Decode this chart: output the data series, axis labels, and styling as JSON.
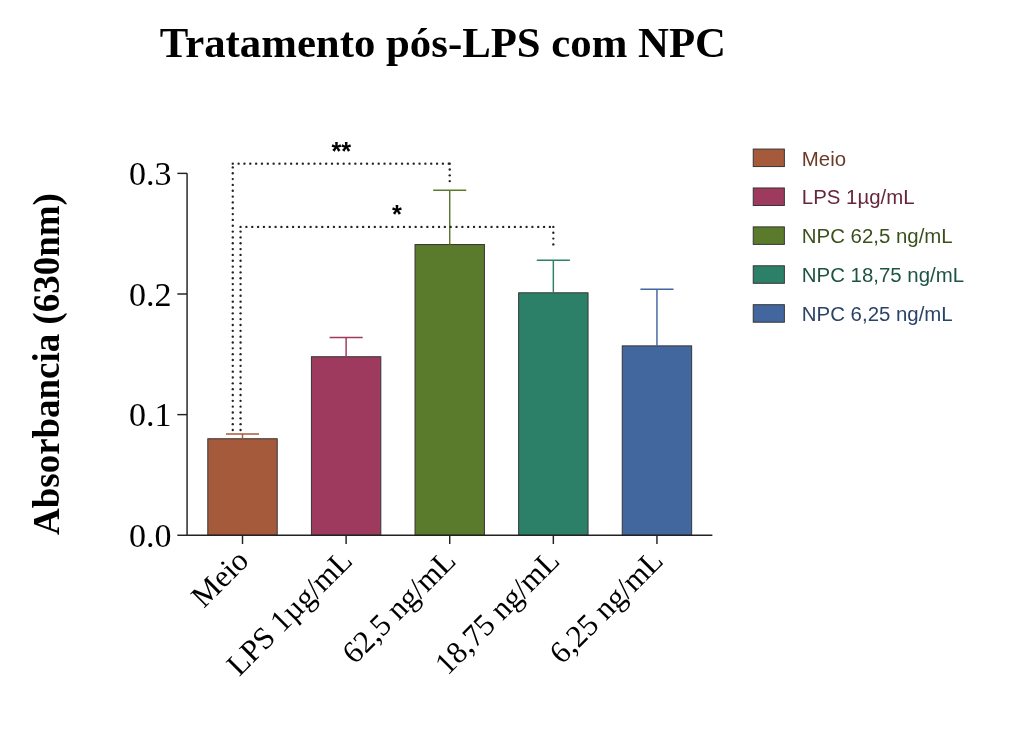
{
  "chart_data": {
    "type": "bar",
    "title": "Tratamento pós-LPS com NPC",
    "ylabel": "Absorbancia (630nm)",
    "categories": [
      "Meio",
      "LPS 1µg/mL",
      "62,5 ng/mL",
      "18,75 ng/mL",
      "6,25 ng/mL"
    ],
    "series": [
      {
        "name": "Meio",
        "color": "#a65a3c",
        "values": [
          0.08,
          null,
          null,
          null,
          null
        ],
        "errors": [
          [
            0.08,
            0.084
          ],
          null,
          null,
          null,
          null
        ]
      },
      {
        "name": "LPS 1µg/mL",
        "color": "#9e3a5e",
        "values": [
          null,
          0.148,
          null,
          null,
          null
        ],
        "errors": [
          null,
          [
            0.148,
            0.164
          ],
          null,
          null,
          null
        ]
      },
      {
        "name": "NPC 62,5 ng/mL",
        "color": "#5a7a2c",
        "values": [
          null,
          null,
          0.241,
          null,
          null
        ],
        "errors": [
          null,
          null,
          [
            0.241,
            0.286
          ],
          null,
          null
        ]
      },
      {
        "name": "NPC 18,75 ng/mL",
        "color": "#2c8068",
        "values": [
          null,
          null,
          null,
          0.201,
          null
        ],
        "errors": [
          null,
          null,
          null,
          [
            0.201,
            0.228
          ],
          null
        ]
      },
      {
        "name": "NPC 6,25 ng/mL",
        "color": "#41679e",
        "values": [
          null,
          null,
          null,
          null,
          0.157
        ],
        "errors": [
          null,
          null,
          null,
          null,
          [
            0.157,
            0.204
          ]
        ]
      }
    ],
    "ylim": [
      0,
      0.3
    ],
    "yticks": [
      {
        "value": 0,
        "label": "0.0"
      },
      0.1,
      0.2,
      0.3
    ],
    "annotations": [
      "**",
      "*"
    ],
    "legend": "right",
    "grid": false
  }
}
